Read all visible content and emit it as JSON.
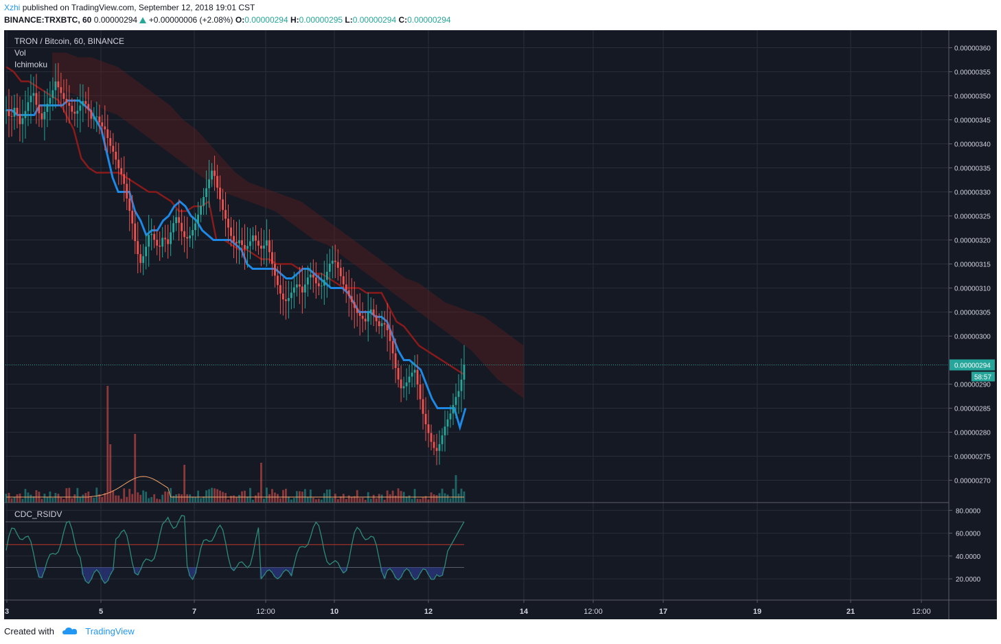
{
  "header": {
    "author": "Xzhi",
    "published": "published on TradingView.com, September 12, 2018 19:01 CST",
    "symbol": "BINANCE:TRXBTC, 60",
    "price": "0.00000294",
    "change": "+0.00000006 (+2.08%)",
    "o_label": "O:",
    "o_val": "0.00000294",
    "h_label": "H:",
    "h_val": "0.00000295",
    "l_label": "L:",
    "l_val": "0.00000294",
    "c_label": "C:",
    "c_val": "0.00000294"
  },
  "legend": {
    "title": "TRON / Bitcoin, 60, BINANCE",
    "vol": "Vol",
    "ichimoku": "Ichimoku",
    "rsi": "CDC_RSIDV"
  },
  "footer": {
    "created": "Created with",
    "brand": "TradingView"
  },
  "colors": {
    "bg": "#151924",
    "grid": "#2a2e39",
    "up": "#26a69a",
    "down": "#ef5350",
    "tenkan": "#1e88e5",
    "kijun": "#8b1a1a",
    "cloud": "#5c2020",
    "rsi": "#2e8b7a",
    "price_line": "#26a69a"
  },
  "chart_data": {
    "type": "candlestick",
    "symbol": "TRXBTC",
    "timeframe": "60",
    "price_axis": {
      "ticks": [
        "0.00000360",
        "0.00000355",
        "0.00000350",
        "0.00000345",
        "0.00000340",
        "0.00000335",
        "0.00000330",
        "0.00000325",
        "0.00000320",
        "0.00000315",
        "0.00000310",
        "0.00000305",
        "0.00000300",
        "0.00000290",
        "0.00000285",
        "0.00000280",
        "0.00000275",
        "0.00000270"
      ],
      "ylim": [
        2.685e-06,
        3.625e-06
      ]
    },
    "last_price": "0.00000294",
    "countdown": "58:57",
    "x_ticks": [
      "3",
      "5",
      "7",
      "12:00",
      "10",
      "12",
      "14",
      "12:00",
      "17",
      "19",
      "21",
      "12:00"
    ],
    "rsi_axis": {
      "ticks": [
        "80.0000",
        "60.0000",
        "40.0000",
        "20.0000"
      ],
      "ylim": [
        5,
        82
      ],
      "levels": [
        70,
        50,
        30
      ]
    },
    "price_series": [
      347,
      345,
      348,
      344,
      346,
      349,
      351,
      347,
      345,
      348,
      350,
      353,
      351,
      349,
      348,
      346,
      347,
      349,
      348,
      345,
      346,
      344,
      343,
      340,
      338,
      335,
      333,
      328,
      324,
      318,
      315,
      318,
      322,
      320,
      318,
      321,
      319,
      323,
      325,
      322,
      320,
      321,
      323,
      326,
      329,
      332,
      335,
      331,
      327,
      324,
      321,
      319,
      320,
      318,
      319,
      321,
      319,
      318,
      320,
      316,
      312,
      309,
      307,
      308,
      310,
      311,
      309,
      312,
      313,
      311,
      310,
      312,
      315,
      316,
      314,
      311,
      309,
      307,
      305,
      304,
      303,
      306,
      304,
      302,
      303,
      301,
      297,
      292,
      289,
      290,
      292,
      293,
      288,
      283,
      280,
      277,
      276,
      279,
      282,
      284,
      287,
      289,
      294
    ],
    "tenkan_series": [
      347,
      347,
      346,
      346,
      346,
      346,
      348,
      348,
      348,
      348,
      348,
      349,
      349,
      349,
      348,
      347,
      345,
      343,
      338,
      333,
      330,
      330,
      330,
      326,
      324,
      321,
      322,
      322,
      324,
      325,
      327,
      328,
      327,
      325,
      324,
      322,
      321,
      320,
      320,
      320,
      320,
      319,
      318,
      315,
      314,
      314,
      314,
      314,
      314,
      313,
      312,
      312,
      313,
      314,
      314,
      313,
      312,
      311,
      310,
      310,
      310,
      309,
      307,
      305,
      305,
      305,
      304,
      304,
      303,
      300,
      297,
      295,
      295,
      294,
      293,
      290,
      287,
      285,
      285,
      285,
      285,
      281,
      285
    ],
    "kijun_series": [
      356,
      355,
      353,
      353,
      352,
      351,
      350,
      349,
      346,
      343,
      337,
      335,
      334,
      334,
      334,
      334,
      333,
      332,
      331,
      330,
      330,
      329,
      328,
      326,
      326,
      327,
      327,
      328,
      320,
      320,
      319,
      318,
      318,
      317,
      316,
      316,
      315,
      315,
      315,
      314,
      314,
      313,
      313,
      312,
      311,
      310,
      310,
      310,
      309,
      309,
      309,
      306,
      303,
      302,
      300,
      298,
      297,
      296,
      295,
      294,
      293,
      292
    ]
  }
}
